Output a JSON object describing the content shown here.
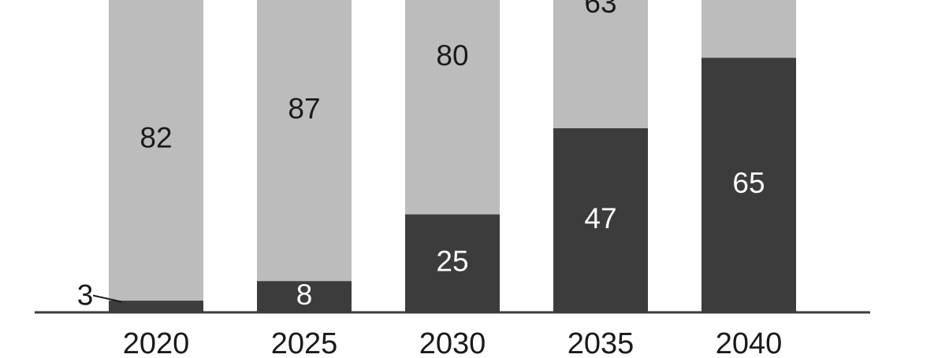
{
  "chart_data": {
    "type": "bar",
    "stacked": true,
    "categories": [
      "2020",
      "2025",
      "2030",
      "2035",
      "2040"
    ],
    "series": [
      {
        "values": [
          3,
          8,
          25,
          47,
          65
        ],
        "color": "#3c3c3c",
        "label_color": "#ffffff"
      },
      {
        "values": [
          82,
          87,
          80,
          63,
          null
        ],
        "color": "#bcbcbc",
        "label_color": "#1a1a1a"
      }
    ],
    "data_labels": [
      [
        "3",
        "8",
        "25",
        "47",
        "65"
      ],
      [
        "82",
        "87",
        "80",
        "63",
        ""
      ]
    ],
    "title": "",
    "xlabel": "",
    "ylabel": "",
    "axis_color": "#3c3c3c",
    "grid": false,
    "legend": "none"
  }
}
